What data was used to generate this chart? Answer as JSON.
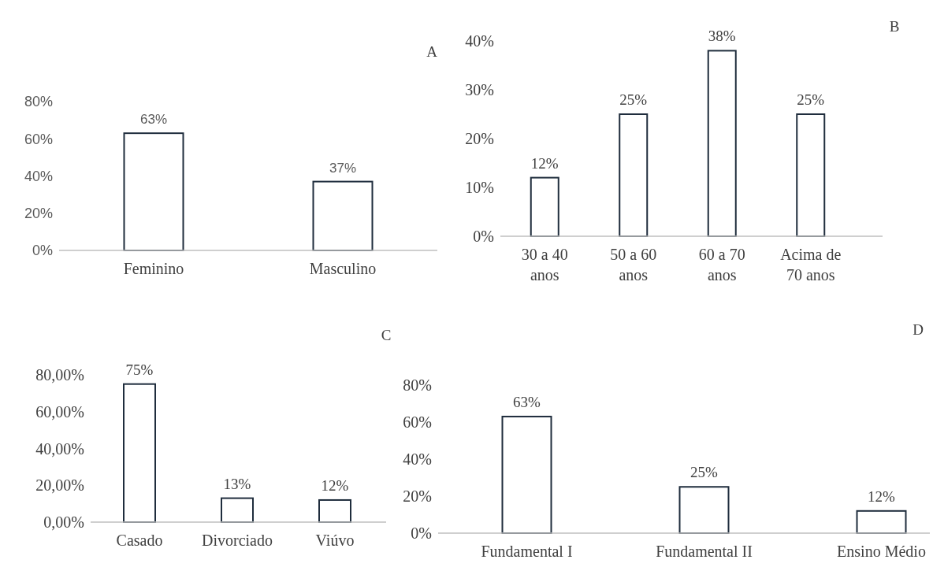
{
  "chart_data": [
    {
      "type": "bar",
      "title": "A",
      "categories": [
        "Feminino",
        "Masculino"
      ],
      "values": [
        63,
        37
      ],
      "value_labels": [
        "63%",
        "37%"
      ],
      "color": "#1f2d3d",
      "ylim": [
        0,
        80
      ],
      "yticks": [
        {
          "value": 0,
          "label": "0%"
        },
        {
          "value": 20,
          "label": "20%"
        },
        {
          "value": 40,
          "label": "40%"
        },
        {
          "value": 60,
          "label": "60%"
        },
        {
          "value": 80,
          "label": "80%"
        }
      ],
      "grid": false
    },
    {
      "type": "bar",
      "title": "B",
      "categories": [
        "30 a 40 anos",
        "50 a 60 anos",
        "60 a 70 anos",
        "Acima de 70 anos"
      ],
      "values": [
        12,
        25,
        38,
        25
      ],
      "value_labels": [
        "12%",
        "25%",
        "38%",
        "25%"
      ],
      "color": "#1f2d3d",
      "ylim": [
        0,
        40
      ],
      "yticks": [
        {
          "value": 0,
          "label": "0%"
        },
        {
          "value": 10,
          "label": "10%"
        },
        {
          "value": 20,
          "label": "20%"
        },
        {
          "value": 30,
          "label": "30%"
        },
        {
          "value": 40,
          "label": "40%"
        }
      ],
      "grid": false
    },
    {
      "type": "bar",
      "title": "C",
      "categories": [
        "Casado",
        "Divorciado",
        "Viúvo"
      ],
      "values": [
        75,
        13,
        12
      ],
      "value_labels": [
        "75%",
        "13%",
        "12%"
      ],
      "color": "#1f2d3d",
      "ylim": [
        0,
        80
      ],
      "yticks": [
        {
          "value": 0,
          "label": "0,00%"
        },
        {
          "value": 20,
          "label": "20,00%"
        },
        {
          "value": 40,
          "label": "40,00%"
        },
        {
          "value": 60,
          "label": "60,00%"
        },
        {
          "value": 80,
          "label": "80,00%"
        }
      ],
      "grid": false
    },
    {
      "type": "bar",
      "title": "D",
      "categories": [
        "Fundamental I",
        "Fundamental II",
        "Ensino Médio"
      ],
      "values": [
        63,
        25,
        12
      ],
      "value_labels": [
        "63%",
        "25%",
        "12%"
      ],
      "color": "#1f2d3d",
      "ylim": [
        0,
        80
      ],
      "yticks": [
        {
          "value": 0,
          "label": "0%"
        },
        {
          "value": 20,
          "label": "20%"
        },
        {
          "value": 40,
          "label": "40%"
        },
        {
          "value": 60,
          "label": "60%"
        },
        {
          "value": 80,
          "label": "80%"
        }
      ],
      "grid": false
    }
  ]
}
